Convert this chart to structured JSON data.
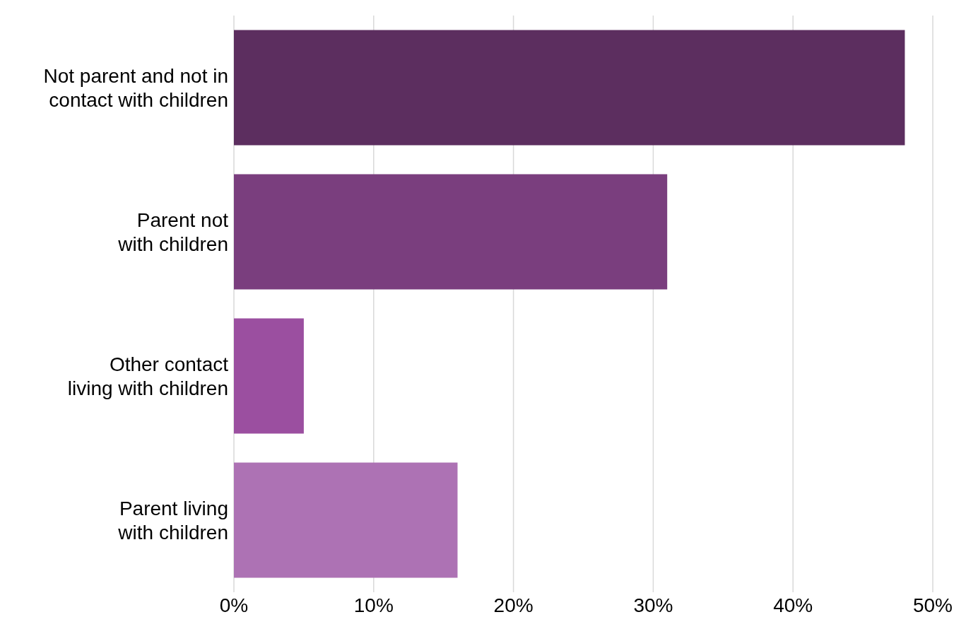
{
  "chart_data": {
    "type": "bar",
    "orientation": "horizontal",
    "categories": [
      "Not parent and not in\ncontact with children",
      "Parent not\nwith children",
      "Other contact\nliving with children",
      "Parent living\nwith children"
    ],
    "values": [
      48,
      31,
      5,
      16
    ],
    "colors": [
      "#5c2e5f",
      "#7a3e7e",
      "#9b4fa0",
      "#ad72b4"
    ],
    "xlim": [
      0,
      50
    ],
    "xticks": [
      {
        "value": 0,
        "label": "0%"
      },
      {
        "value": 10,
        "label": "10%"
      },
      {
        "value": 20,
        "label": "20%"
      },
      {
        "value": 30,
        "label": "30%"
      },
      {
        "value": 40,
        "label": "40%"
      },
      {
        "value": 50,
        "label": "50%"
      }
    ],
    "grid": "x",
    "legend": false
  }
}
